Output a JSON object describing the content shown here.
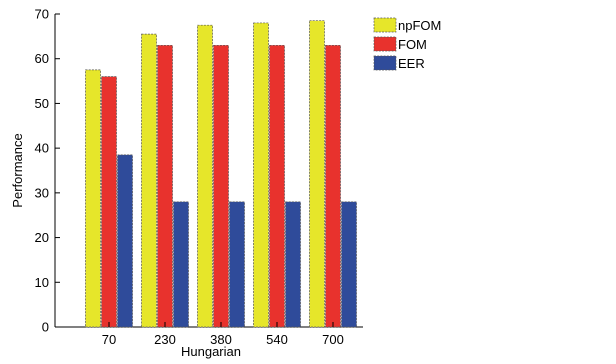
{
  "chart_data": {
    "type": "bar",
    "title": "",
    "xlabel": "Hungarian",
    "ylabel": "Performance",
    "categories": [
      "70",
      "230",
      "380",
      "540",
      "700"
    ],
    "ylim": [
      0,
      70
    ],
    "yticks": [
      "0",
      "10",
      "20",
      "30",
      "40",
      "50",
      "60",
      "70"
    ],
    "grid": false,
    "legend_position": "top-right, outside plot",
    "series": [
      {
        "name": "npFOM",
        "color": "#e6e62a",
        "values": [
          57.5,
          65.5,
          67.5,
          68,
          68.5
        ]
      },
      {
        "name": "FOM",
        "color": "#e8322d",
        "values": [
          56,
          63,
          63,
          63,
          63
        ]
      },
      {
        "name": "EER",
        "color": "#2f4b9a",
        "values": [
          38.5,
          28,
          28,
          28,
          28
        ]
      }
    ]
  }
}
